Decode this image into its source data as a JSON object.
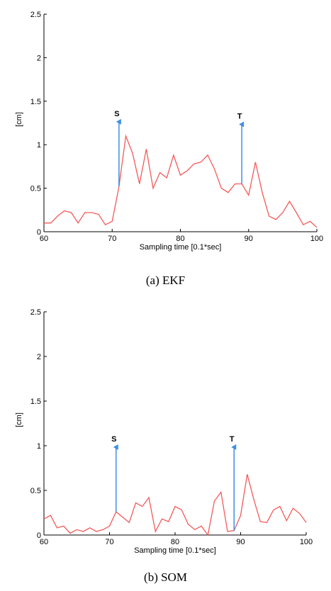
{
  "colors": {
    "series": "#f45a5a",
    "arrow": "#3d8fe6",
    "axis": "#000000"
  },
  "charts": [
    {
      "caption": "(a) EKF"
    },
    {
      "caption": "(b) SOM"
    }
  ],
  "chart_data": [
    {
      "type": "line",
      "caption": "(a) EKF",
      "xlabel": "Sampling time [0.1*sec]",
      "ylabel": "[cm]",
      "xlim": [
        60,
        100
      ],
      "ylim": [
        0,
        2.5
      ],
      "xticks": [
        60,
        70,
        80,
        90,
        100
      ],
      "yticks": [
        0,
        0.5,
        1,
        1.5,
        2,
        2.5
      ],
      "grid": false,
      "series": [
        {
          "x": [
            60,
            61,
            62,
            63,
            64,
            65,
            66,
            67,
            68,
            69,
            70,
            71,
            72,
            73,
            74,
            75,
            76,
            77,
            78,
            79,
            80,
            81,
            82,
            83,
            84,
            85,
            86,
            87,
            88,
            89,
            90,
            91,
            92,
            93,
            94,
            95,
            96,
            97,
            98,
            99,
            100
          ],
          "y": [
            0.1,
            0.1,
            0.18,
            0.24,
            0.22,
            0.1,
            0.22,
            0.22,
            0.2,
            0.08,
            0.12,
            0.52,
            1.1,
            0.9,
            0.55,
            0.95,
            0.5,
            0.68,
            0.62,
            0.88,
            0.65,
            0.7,
            0.78,
            0.8,
            0.88,
            0.72,
            0.5,
            0.45,
            0.55,
            0.55,
            0.42,
            0.8,
            0.45,
            0.18,
            0.14,
            0.22,
            0.35,
            0.22,
            0.08,
            0.12,
            0.05
          ]
        }
      ],
      "annotations": [
        {
          "label": "S",
          "x": 71,
          "y_start": 0.52,
          "y_end": 1.28
        },
        {
          "label": "T",
          "x": 89,
          "y_start": 0.55,
          "y_end": 1.25
        }
      ]
    },
    {
      "type": "line",
      "caption": "(b) SOM",
      "xlabel": "Sampling time [0.1*sec]",
      "ylabel": "[cm]",
      "xlim": [
        60,
        100
      ],
      "ylim": [
        0,
        2.5
      ],
      "xticks": [
        60,
        70,
        80,
        90,
        100
      ],
      "yticks": [
        0,
        0.5,
        1,
        1.5,
        2,
        2.5
      ],
      "grid": false,
      "series": [
        {
          "x": [
            60,
            61,
            62,
            63,
            64,
            65,
            66,
            67,
            68,
            69,
            70,
            71,
            72,
            73,
            74,
            75,
            76,
            77,
            78,
            79,
            80,
            81,
            82,
            83,
            84,
            85,
            86,
            87,
            88,
            89,
            90,
            91,
            92,
            93,
            94,
            95,
            96,
            97,
            98,
            99,
            100
          ],
          "y": [
            0.18,
            0.22,
            0.08,
            0.1,
            0.02,
            0.06,
            0.04,
            0.08,
            0.04,
            0.06,
            0.1,
            0.26,
            0.2,
            0.14,
            0.36,
            0.32,
            0.42,
            0.04,
            0.18,
            0.15,
            0.32,
            0.28,
            0.12,
            0.06,
            0.1,
            0.0,
            0.38,
            0.48,
            0.04,
            0.05,
            0.22,
            0.68,
            0.4,
            0.15,
            0.14,
            0.28,
            0.32,
            0.16,
            0.3,
            0.24,
            0.14
          ]
        }
      ],
      "annotations": [
        {
          "label": "S",
          "x": 71,
          "y_start": 0.26,
          "y_end": 1.0
        },
        {
          "label": "T",
          "x": 89,
          "y_start": 0.05,
          "y_end": 1.0
        }
      ]
    }
  ]
}
